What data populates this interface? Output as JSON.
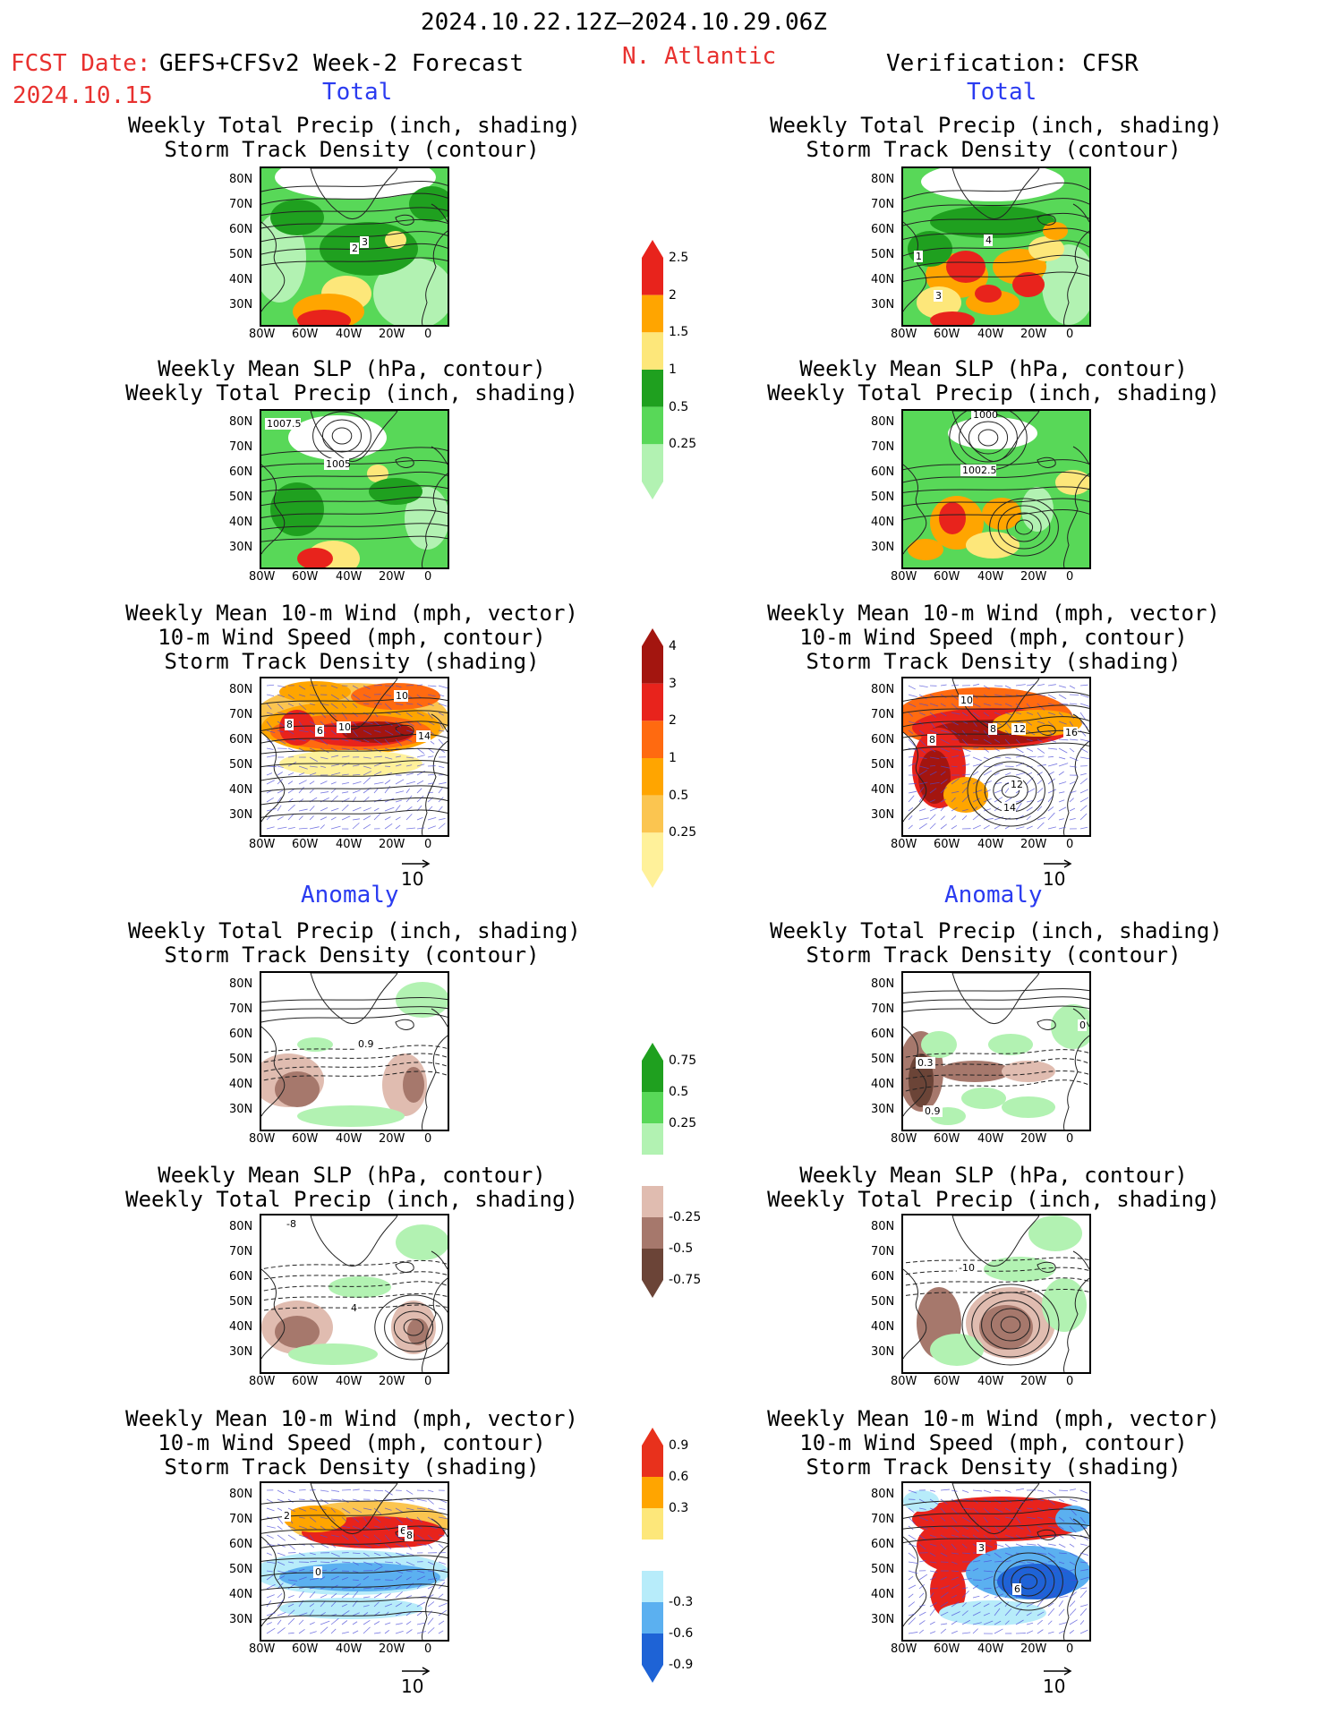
{
  "header": {
    "date_range": "2024.10.22.12Z–2024.10.29.06Z",
    "fcst_label": "FCST Date:",
    "fcst_model": "GEFS+CFSv2 Week-2 Forecast",
    "fcst_date": "2024.10.15",
    "region": "N. Atlantic",
    "verification": "Verification: CFSR"
  },
  "sections": {
    "total_left": "Total",
    "total_right": "Total",
    "anomaly_left": "Anomaly",
    "anomaly_right": "Anomaly"
  },
  "panel_titles": {
    "precip_storm": "Weekly Total Precip (inch, shading)\nStorm Track Density (contour)",
    "slp_precip": "Weekly Mean SLP (hPa, contour)\nWeekly Total Precip (inch, shading)",
    "wind_storm": "Weekly Mean 10-m Wind (mph, vector)\n10-m Wind Speed (mph, contour)\nStorm Track Density (shading)"
  },
  "axis": {
    "lat_labels": [
      "80N",
      "70N",
      "60N",
      "50N",
      "40N",
      "30N"
    ],
    "lon_labels": [
      "80W",
      "60W",
      "40W",
      "20W",
      "0"
    ]
  },
  "vector_ref": "10",
  "colorbars": {
    "precip_total": {
      "labels": [
        "2.5",
        "2",
        "1.5",
        "1",
        "0.5",
        "0.25"
      ],
      "colors": [
        "#e8231c",
        "#ffa500",
        "#fde77a",
        "#1fa01f",
        "#58d858",
        "#b2f2b2"
      ]
    },
    "storm_total": {
      "labels": [
        "4",
        "3",
        "2",
        "1",
        "0.5",
        "0.25"
      ],
      "colors": [
        "#a3150f",
        "#e8231c",
        "#ff6a10",
        "#ffa500",
        "#fbc550",
        "#fff19a"
      ]
    },
    "precip_anom": {
      "labels": [
        "0.75",
        "0.5",
        "0.25",
        "-0.25",
        "-0.5",
        "-0.75"
      ],
      "colors": [
        "#1fa01f",
        "#58d858",
        "#b2f2b2",
        "#ffffff",
        "#e0bcb0",
        "#a6786c",
        "#6b4437"
      ]
    },
    "storm_anom": {
      "labels": [
        "0.9",
        "0.6",
        "0.3",
        "-0.3",
        "-0.6",
        "-0.9"
      ],
      "colors": [
        "#e8311c",
        "#ffa500",
        "#fde77a",
        "#ffffff",
        "#b7ecfa",
        "#5bb0f0",
        "#1e63d6"
      ]
    }
  },
  "contour_labels": {
    "p1L": [
      "2",
      "3"
    ],
    "p1R": [
      "1",
      "3",
      "4"
    ],
    "p2L": [
      "1007.5",
      "1005"
    ],
    "p2R": [
      "1000",
      "1002.5"
    ],
    "p3L": [
      "8",
      "6",
      "10",
      "10",
      "14"
    ],
    "p3R": [
      "10",
      "8",
      "8",
      "12",
      "16",
      "12",
      "14"
    ],
    "p4L": [
      "0.9"
    ],
    "p4R": [
      "0.3",
      "0.9",
      "0"
    ],
    "p5L": [
      "-8",
      "4"
    ],
    "p5R": [
      "-10"
    ],
    "p6L": [
      "2",
      "6",
      "8",
      "0"
    ],
    "p6R": [
      "3",
      "6"
    ]
  }
}
